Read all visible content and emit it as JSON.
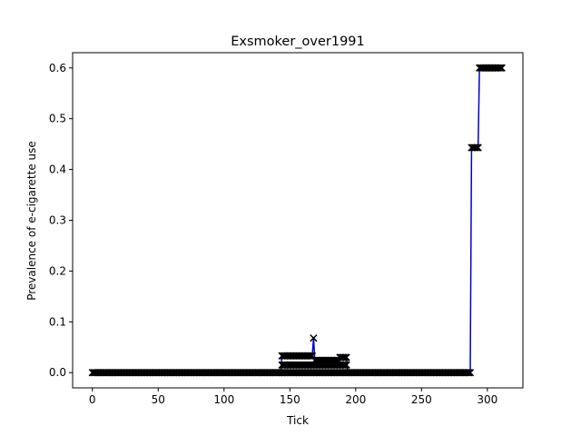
{
  "chart_data": {
    "type": "line",
    "title": "Exsmoker_over1991",
    "xlabel": "Tick",
    "ylabel": "Prevalence of e-cigarette use",
    "xlim": [
      -15,
      327
    ],
    "ylim": [
      -0.03,
      0.63
    ],
    "xticks": [
      0,
      50,
      100,
      150,
      200,
      250,
      300
    ],
    "yticks": [
      0.0,
      0.1,
      0.2,
      0.3,
      0.4,
      0.5,
      0.6
    ],
    "ytick_labels": [
      "0.0",
      "0.1",
      "0.2",
      "0.3",
      "0.4",
      "0.5",
      "0.6"
    ],
    "grid": false,
    "line_color": "#0000cc",
    "marker": "x",
    "marker_color": "#000000",
    "segments": [
      {
        "x_start": 0,
        "x_end": 143,
        "value": 0.0
      },
      {
        "x_start": 144,
        "x_end": 155,
        "value": 0.033
      },
      {
        "x_start": 156,
        "x_end": 167,
        "value": 0.033
      },
      {
        "x_start": 168,
        "x_end": 168,
        "value": 0.068
      },
      {
        "x_start": 169,
        "x_end": 180,
        "value": 0.024
      },
      {
        "x_start": 181,
        "x_end": 187,
        "value": 0.024
      },
      {
        "x_start": 188,
        "x_end": 193,
        "value": 0.03
      },
      {
        "x_start": 194,
        "x_end": 287,
        "value": 0.0
      },
      {
        "x_start": 288,
        "x_end": 293,
        "value": 0.443
      },
      {
        "x_start": 294,
        "x_end": 311,
        "value": 0.6
      }
    ],
    "background_points": [
      {
        "x_start": 144,
        "x_end": 193,
        "value": 0.0
      },
      {
        "x_start": 144,
        "x_end": 193,
        "value": 0.015
      }
    ]
  }
}
